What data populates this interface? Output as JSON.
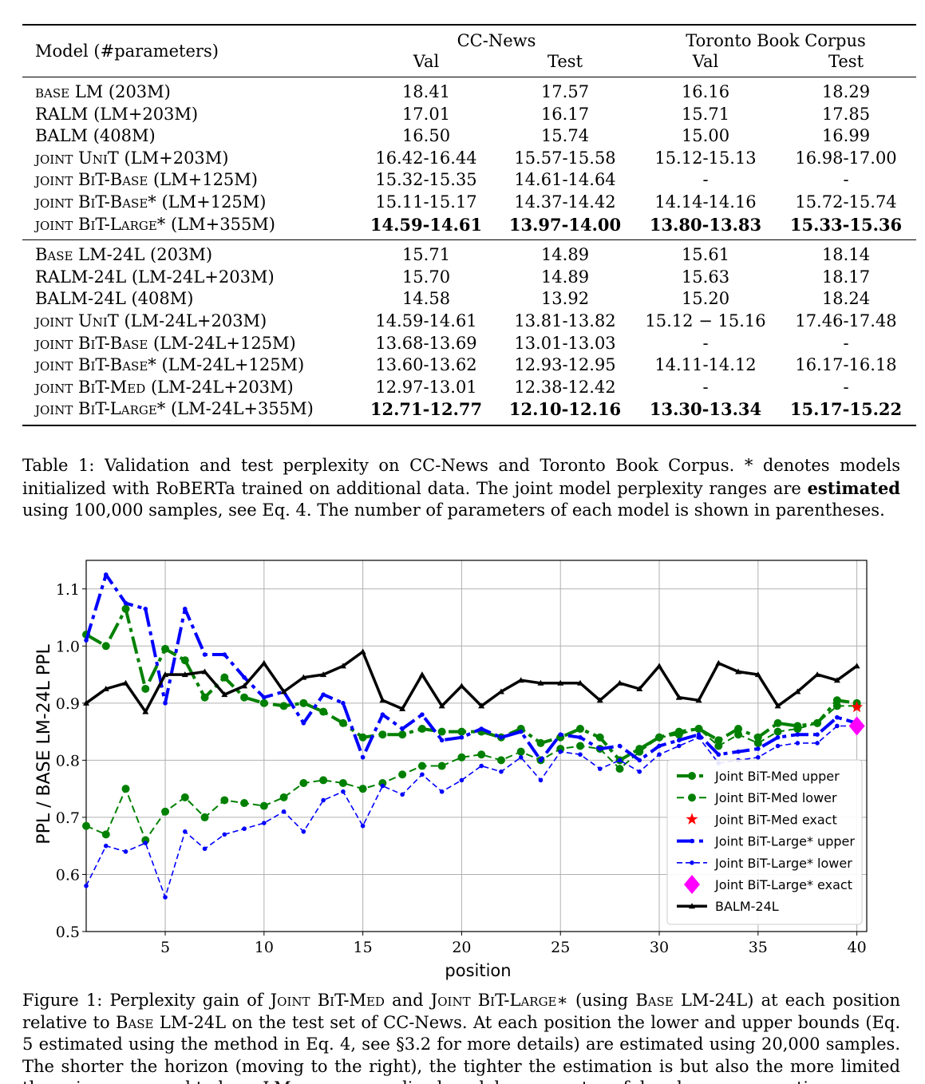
{
  "table": {
    "header": {
      "model_col": "Model (#parameters)",
      "group1": "CC-News",
      "group2": "Toronto Book Corpus",
      "sub_val": "Val",
      "sub_test": "Test"
    },
    "block1": [
      {
        "prefix": "base",
        "name": " LM (203M)",
        "v1": "18.41",
        "v2": "17.57",
        "v3": "16.16",
        "v4": "18.29",
        "bold": false
      },
      {
        "prefix": "",
        "name": "RALM (LM+203M)",
        "v1": "17.01",
        "v2": "16.17",
        "v3": "15.71",
        "v4": "17.85",
        "bold": false
      },
      {
        "prefix": "",
        "name": "BALM (408M)",
        "v1": "16.50",
        "v2": "15.74",
        "v3": "15.00",
        "v4": "16.99",
        "bold": false
      },
      {
        "prefix": "joint UniT",
        "name": " (LM+203M)",
        "v1": "16.42-16.44",
        "v2": "15.57-15.58",
        "v3": "15.12-15.13",
        "v4": "16.98-17.00",
        "bold": false
      },
      {
        "prefix": "joint BiT-Base",
        "name": " (LM+125M)",
        "v1": "15.32-15.35",
        "v2": "14.61-14.64",
        "v3": "-",
        "v4": "-",
        "bold": false
      },
      {
        "prefix": "joint BiT-Base*",
        "name": " (LM+125M)",
        "v1": "15.11-15.17",
        "v2": "14.37-14.42",
        "v3": "14.14-14.16",
        "v4": "15.72-15.74",
        "bold": false
      },
      {
        "prefix": "joint BiT-Large*",
        "name": " (LM+355M)",
        "v1": "14.59-14.61",
        "v2": "13.97-14.00",
        "v3": "13.80-13.83",
        "v4": "15.33-15.36",
        "bold": true
      }
    ],
    "block2": [
      {
        "prefix": "Base",
        "name": " LM-24L (203M)",
        "v1": "15.71",
        "v2": "14.89",
        "v3": "15.61",
        "v4": "18.14",
        "bold": false
      },
      {
        "prefix": "",
        "name": "RALM-24L (LM-24L+203M)",
        "v1": "15.70",
        "v2": "14.89",
        "v3": "15.63",
        "v4": "18.17",
        "bold": false
      },
      {
        "prefix": "",
        "name": "BALM-24L (408M)",
        "v1": "14.58",
        "v2": "13.92",
        "v3": "15.20",
        "v4": "18.24",
        "bold": false
      },
      {
        "prefix": "joint UniT",
        "name": " (LM-24L+203M)",
        "v1": "14.59-14.61",
        "v2": "13.81-13.82",
        "v3": "15.12 − 15.16",
        "v4": "17.46-17.48",
        "bold": false
      },
      {
        "prefix": "joint BiT-Base",
        "name": " (LM-24L+125M)",
        "v1": "13.68-13.69",
        "v2": "13.01-13.03",
        "v3": "-",
        "v4": "-",
        "bold": false
      },
      {
        "prefix": "joint BiT-Base*",
        "name": " (LM-24L+125M)",
        "v1": "13.60-13.62",
        "v2": "12.93-12.95",
        "v3": "14.11-14.12",
        "v4": "16.17-16.18",
        "bold": false
      },
      {
        "prefix": "joint BiT-Med",
        "name": " (LM-24L+203M)",
        "v1": "12.97-13.01",
        "v2": "12.38-12.42",
        "v3": "-",
        "v4": "-",
        "bold": false
      },
      {
        "prefix": "joint BiT-Large*",
        "name": " (LM-24L+355M)",
        "v1": "12.71-12.77",
        "v2": "12.10-12.16",
        "v3": "13.30-13.34",
        "v4": "15.17-15.22",
        "bold": true
      }
    ]
  },
  "table_caption": {
    "p1": "Table 1:  Validation and test perplexity on CC-News and Toronto Book Corpus.  * denotes models initialized with RoBERTa trained on additional data.  The joint model perplexity ranges are ",
    "bold": "estimated",
    "p2": " using 100,000 samples, see Eq. 4. The number of parameters of each model is shown in parentheses."
  },
  "figure_caption": {
    "p1": "Figure 1: Perplexity gain of ",
    "sc1": "Joint BiT-Med",
    "p2": " and ",
    "sc2": "Joint BiT-Large",
    "p3": "∗ (using ",
    "sc3": "Base",
    "p4": " LM-24L) at each position relative to ",
    "sc4": "Base",
    "p5": " LM-24L on the test set of CC-News.  At each position the lower and upper bounds (Eq. 5 estimated using the method in Eq. 4, see §3.2 for more details) are estimated using 20,000 samples. The shorter the horizon (moving to the right), the tighter the estimation is but also the more limited the gains compared to base LM as un-normalized models are most useful on longer generation."
  },
  "chart_data": {
    "type": "line",
    "xlabel": "position",
    "ylabel": "PPL / BASE LM-24L PPL",
    "xlim": [
      1,
      40.5
    ],
    "ylim": [
      0.5,
      1.15
    ],
    "xticks": [
      5,
      10,
      15,
      20,
      25,
      30,
      35,
      40
    ],
    "yticks": [
      0.5,
      0.6,
      0.7,
      0.8,
      0.9,
      1.0,
      1.1
    ],
    "ytick_labels": [
      "0.5",
      "0.6",
      "0.7",
      "0.8",
      "0.9",
      "1.0",
      "1.1"
    ],
    "grid": true,
    "legend_position": "lower-right",
    "x": [
      1,
      2,
      3,
      4,
      5,
      6,
      7,
      8,
      9,
      10,
      11,
      12,
      13,
      14,
      15,
      16,
      17,
      18,
      19,
      20,
      21,
      22,
      23,
      24,
      25,
      26,
      27,
      28,
      29,
      30,
      31,
      32,
      33,
      34,
      35,
      36,
      37,
      38,
      39,
      40
    ],
    "series": [
      {
        "name": "Joint BiT-Med upper",
        "color": "#008000",
        "style": "dashdot-thick",
        "marker": "circle",
        "values": [
          1.02,
          1.0,
          1.065,
          0.925,
          0.995,
          0.975,
          0.91,
          0.945,
          0.91,
          0.9,
          0.895,
          0.9,
          0.885,
          0.865,
          0.84,
          0.845,
          0.845,
          0.855,
          0.85,
          0.85,
          0.85,
          0.84,
          0.855,
          0.83,
          0.84,
          0.855,
          0.84,
          0.8,
          0.82,
          0.84,
          0.85,
          0.855,
          0.835,
          0.855,
          0.84,
          0.865,
          0.86,
          0.865,
          0.905,
          0.9
        ]
      },
      {
        "name": "Joint BiT-Med lower",
        "color": "#008000",
        "style": "dashed",
        "marker": "circle",
        "values": [
          0.685,
          0.67,
          0.75,
          0.66,
          0.71,
          0.735,
          0.7,
          0.73,
          0.725,
          0.72,
          0.735,
          0.76,
          0.765,
          0.76,
          0.75,
          0.76,
          0.775,
          0.79,
          0.79,
          0.805,
          0.81,
          0.8,
          0.815,
          0.8,
          0.82,
          0.825,
          0.82,
          0.785,
          0.815,
          0.84,
          0.845,
          0.855,
          0.825,
          0.845,
          0.83,
          0.85,
          0.855,
          0.865,
          0.895,
          0.895
        ]
      },
      {
        "name": "Joint BiT-Med exact",
        "color": "#ff0000",
        "style": "none",
        "marker": "star",
        "points": [
          [
            40,
            0.893
          ]
        ]
      },
      {
        "name": "Joint BiT-Large* upper",
        "color": "#0000ff",
        "style": "dashdot-thick",
        "marker": "dot",
        "values": [
          1.01,
          1.125,
          1.075,
          1.065,
          0.9,
          1.065,
          0.985,
          0.985,
          0.945,
          0.91,
          0.92,
          0.865,
          0.915,
          0.9,
          0.805,
          0.88,
          0.855,
          0.88,
          0.835,
          0.84,
          0.855,
          0.84,
          0.85,
          0.8,
          0.845,
          0.84,
          0.82,
          0.825,
          0.8,
          0.825,
          0.835,
          0.845,
          0.81,
          0.815,
          0.82,
          0.84,
          0.845,
          0.845,
          0.875,
          0.865
        ]
      },
      {
        "name": "Joint BiT-Large* lower",
        "color": "#0000ff",
        "style": "dashed-thin",
        "marker": "dot",
        "values": [
          0.58,
          0.65,
          0.64,
          0.655,
          0.56,
          0.675,
          0.645,
          0.67,
          0.68,
          0.69,
          0.71,
          0.675,
          0.73,
          0.745,
          0.685,
          0.755,
          0.74,
          0.775,
          0.745,
          0.765,
          0.79,
          0.78,
          0.805,
          0.765,
          0.815,
          0.81,
          0.785,
          0.8,
          0.78,
          0.81,
          0.825,
          0.84,
          0.795,
          0.8,
          0.805,
          0.825,
          0.83,
          0.83,
          0.86,
          0.86
        ]
      },
      {
        "name": "Joint BiT-Large* exact",
        "color": "#ff00ff",
        "style": "none",
        "marker": "diamond",
        "points": [
          [
            40,
            0.86
          ]
        ]
      },
      {
        "name": "BALM-24L",
        "color": "#000000",
        "style": "solid-thick",
        "marker": "tri",
        "values": [
          0.9,
          0.925,
          0.935,
          0.885,
          0.95,
          0.95,
          0.955,
          0.915,
          0.93,
          0.97,
          0.92,
          0.945,
          0.95,
          0.965,
          0.99,
          0.905,
          0.89,
          0.95,
          0.895,
          0.93,
          0.895,
          0.92,
          0.94,
          0.935,
          0.935,
          0.935,
          0.905,
          0.935,
          0.925,
          0.965,
          0.91,
          0.905,
          0.97,
          0.955,
          0.95,
          0.895,
          0.92,
          0.95,
          0.94,
          0.965
        ]
      }
    ]
  }
}
